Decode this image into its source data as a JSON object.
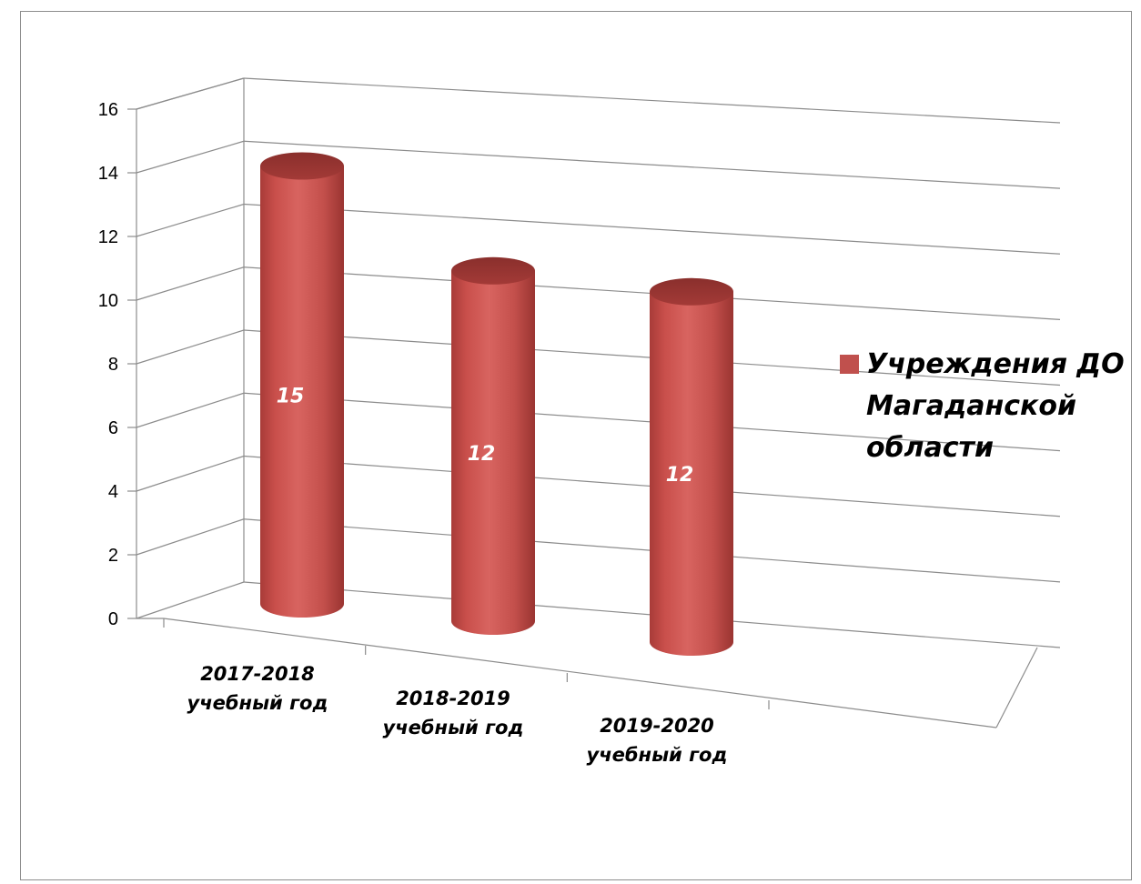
{
  "chart_data": {
    "type": "bar",
    "style": "3d-cylinder",
    "categories": [
      "2017-2018 учебный год",
      "2018-2019 учебный год",
      "2019-2020 учебный год"
    ],
    "category_lines": [
      [
        "2017-2018",
        "учебный год"
      ],
      [
        "2018-2019",
        "учебный год"
      ],
      [
        "2019-2020",
        "учебный год"
      ]
    ],
    "series": [
      {
        "name": "Учреждения ДО Магаданской области",
        "values": [
          15,
          12,
          12
        ],
        "color": "#C0504D"
      }
    ],
    "data_labels": [
      "15",
      "12",
      "12"
    ],
    "ylim": [
      0,
      16
    ],
    "yticks": [
      "0",
      "2",
      "4",
      "6",
      "8",
      "10",
      "12",
      "14",
      "16"
    ],
    "grid": true,
    "legend_position": "right"
  },
  "legend": {
    "text": "Учреждения ДО Магаданской области",
    "color": "#C0504D"
  }
}
